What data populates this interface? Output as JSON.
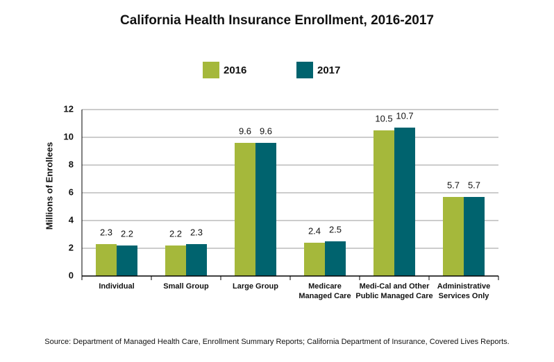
{
  "chart_data": {
    "type": "bar",
    "title": "California Health Insurance Enrollment, 2016-2017",
    "y_label": "Millions of Enrollees",
    "source": "Source:  Department of Managed Health Care, Enrollment Summary Reports; California Department of Insurance, Covered Lives Reports.",
    "categories": [
      "Individual",
      "Small Group",
      "Large Group",
      "Medicare\nManaged Care",
      "Medi-Cal and Other\nPublic Managed Care",
      "Administrative\nServices Only"
    ],
    "series": [
      {
        "name": "2016",
        "color": "#a5b83b",
        "values": [
          2.3,
          2.2,
          9.6,
          2.4,
          10.5,
          5.7
        ]
      },
      {
        "name": "2017",
        "color": "#00636e",
        "values": [
          2.2,
          2.3,
          9.6,
          2.5,
          10.7,
          5.7
        ]
      }
    ],
    "ylim": [
      0,
      12
    ],
    "yticks": [
      0,
      2,
      4,
      6,
      8,
      10,
      12
    ],
    "grid": true,
    "legend": "top"
  }
}
